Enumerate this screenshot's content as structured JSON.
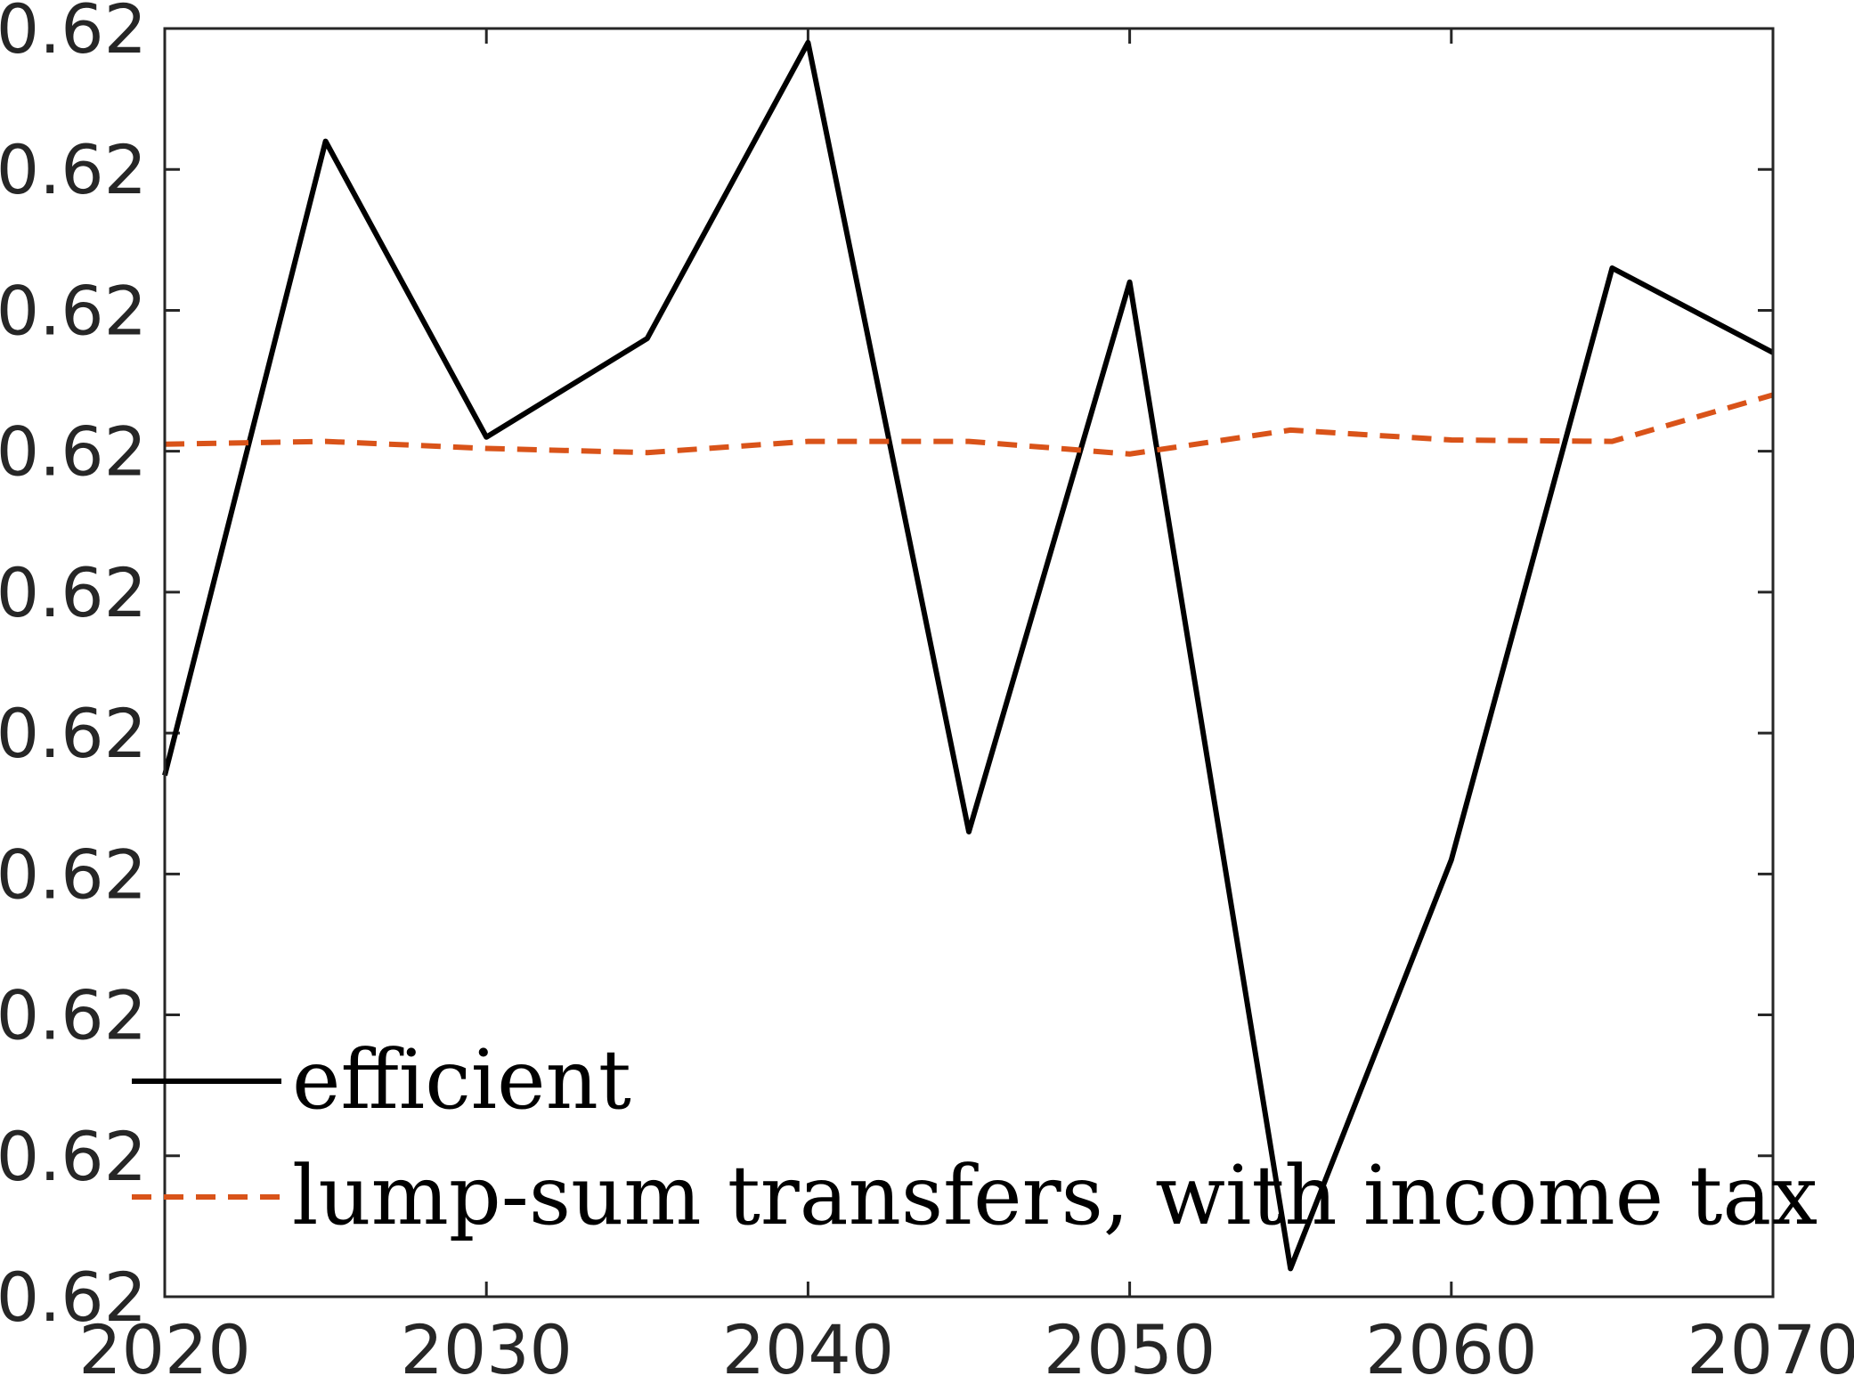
{
  "chart_data": {
    "type": "line",
    "title": "",
    "xlabel": "",
    "ylabel": "",
    "x": [
      2020,
      2025,
      2030,
      2035,
      2040,
      2045,
      2050,
      2055,
      2060,
      2065,
      2070
    ],
    "xlim": [
      2020,
      2070
    ],
    "ylim": [
      0,
      9
    ],
    "x_ticks": [
      2020,
      2030,
      2040,
      2050,
      2060,
      2070
    ],
    "x_tick_labels": [
      "2020",
      "2030",
      "2040",
      "2050",
      "2060",
      "2070"
    ],
    "y_tick_labels": [
      "0.62",
      "0.62",
      "0.62",
      "0.62",
      "0.62",
      "0.62",
      "0.62",
      "0.62",
      "0.62",
      "0.62"
    ],
    "series": [
      {
        "name": "efficient",
        "color": "#000000",
        "style": "solid",
        "values": [
          3.7,
          8.2,
          6.1,
          6.8,
          8.9,
          3.3,
          7.2,
          0.2,
          3.1,
          7.3,
          6.7
        ]
      },
      {
        "name": "lump-sum transfers, with income tax",
        "color": "#D95319",
        "style": "dashed",
        "values": [
          6.05,
          6.07,
          6.02,
          5.99,
          6.07,
          6.07,
          5.98,
          6.15,
          6.08,
          6.07,
          6.4
        ]
      }
    ],
    "legend": {
      "position": "bottom-left",
      "entries": [
        "efficient",
        "lump-sum transfers, with income tax"
      ]
    },
    "grid": false
  }
}
